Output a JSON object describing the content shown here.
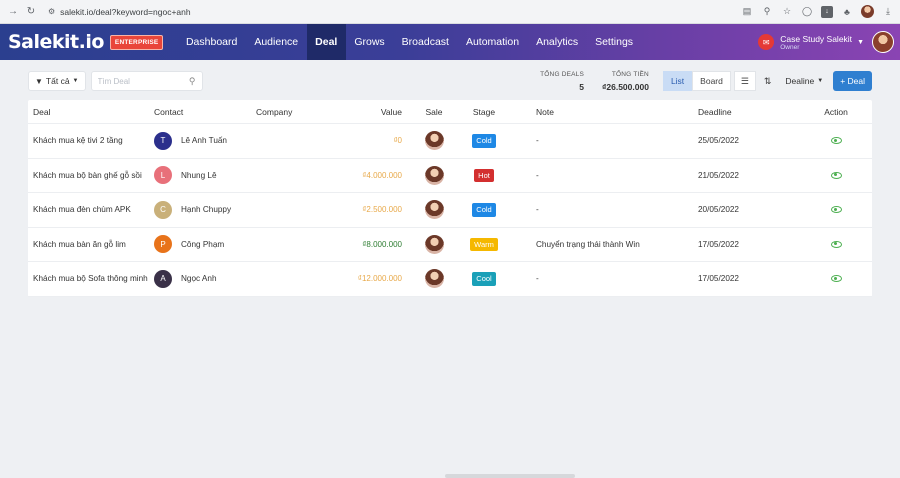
{
  "browser": {
    "url": "salekit.io/deal?keyword=ngoc+anh"
  },
  "nav": {
    "logo": "Salekit.io",
    "badge": "ENTERPRISE",
    "menu": [
      {
        "label": "Dashboard"
      },
      {
        "label": "Audience"
      },
      {
        "label": "Deal",
        "active": true
      },
      {
        "label": "Grows"
      },
      {
        "label": "Broadcast"
      },
      {
        "label": "Automation"
      },
      {
        "label": "Analytics"
      },
      {
        "label": "Settings"
      }
    ],
    "user_name": "Case Study Salekit",
    "user_role": "Owner"
  },
  "toolbar": {
    "filter_label": "Tất cả",
    "search_placeholder": "Tìm Deal",
    "stats": {
      "total_deals_label": "TỔNG DEALS",
      "total_deals_value": "5",
      "total_money_label": "TỔNG TIỀN",
      "total_money_value": "₫26.500.000"
    },
    "view_list": "List",
    "view_board": "Board",
    "sort_label": "Dealine",
    "add_label": "+ Deal"
  },
  "table": {
    "headers": {
      "deal": "Deal",
      "contact": "Contact",
      "company": "Company",
      "value": "Value",
      "sale": "Sale",
      "stage": "Stage",
      "note": "Note",
      "deadline": "Deadline",
      "action": "Action"
    },
    "rows": [
      {
        "deal": "Khách mua kệ tivi 2 tầng",
        "contact_initial": "T",
        "contact_color": "#2b2f8c",
        "contact": "Lê Anh Tuấn",
        "company": "",
        "value": "₫0",
        "value_color": "yellow",
        "stage": "Cold",
        "stage_color": "#1e88e5",
        "note": "-",
        "deadline": "25/05/2022"
      },
      {
        "deal": "Khách mua bộ bàn ghế gỗ sồi",
        "contact_initial": "L",
        "contact_color": "#e8707a",
        "contact": "Nhung Lê",
        "company": "",
        "value": "₫4.000.000",
        "value_color": "yellow",
        "stage": "Hot",
        "stage_color": "#d32f2f",
        "note": "-",
        "deadline": "21/05/2022"
      },
      {
        "deal": "Khách mua đèn chùm APK",
        "contact_initial": "C",
        "contact_color": "#c9b07a",
        "contact": "Hạnh Chuppy",
        "company": "",
        "value": "₫2.500.000",
        "value_color": "yellow",
        "stage": "Cold",
        "stage_color": "#1e88e5",
        "note": "-",
        "deadline": "20/05/2022"
      },
      {
        "deal": "Khách mua bàn ăn gỗ lim",
        "contact_initial": "P",
        "contact_color": "#e8731a",
        "contact": "Công Phạm",
        "company": "",
        "value": "₫8.000.000",
        "value_color": "green",
        "stage": "Warm",
        "stage_color": "#f5b800",
        "note": "Chuyển trạng thái thành Win",
        "deadline": "17/05/2022"
      },
      {
        "deal": "Khách mua bộ Sofa thông minh",
        "contact_initial": "A",
        "contact_color": "#3a3148",
        "contact": "Ngọc Anh",
        "company": "",
        "value": "₫12.000.000",
        "value_color": "yellow",
        "stage": "Cool",
        "stage_color": "#1aa0b8",
        "note": "-",
        "deadline": "17/05/2022"
      }
    ]
  }
}
